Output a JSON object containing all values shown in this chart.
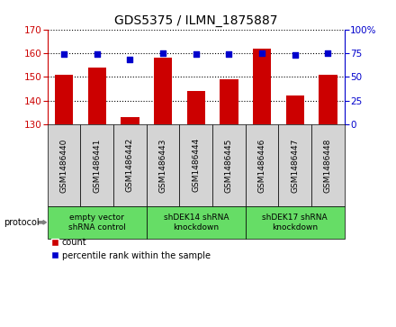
{
  "title": "GDS5375 / ILMN_1875887",
  "categories": [
    "GSM1486440",
    "GSM1486441",
    "GSM1486442",
    "GSM1486443",
    "GSM1486444",
    "GSM1486445",
    "GSM1486446",
    "GSM1486447",
    "GSM1486448"
  ],
  "bar_values": [
    151.0,
    154.0,
    133.0,
    158.0,
    144.0,
    149.0,
    162.0,
    142.0,
    151.0
  ],
  "percentile_values": [
    74,
    74,
    68,
    75,
    74,
    74,
    75,
    73,
    75
  ],
  "ylim_left": [
    130,
    170
  ],
  "ylim_right": [
    0,
    100
  ],
  "yticks_left": [
    130,
    140,
    150,
    160,
    170
  ],
  "yticks_right": [
    0,
    25,
    50,
    75,
    100
  ],
  "bar_color": "#cc0000",
  "dot_color": "#0000cc",
  "bar_width": 0.55,
  "protocols": [
    {
      "label": "empty vector\nshRNA control",
      "start": 0,
      "end": 3
    },
    {
      "label": "shDEK14 shRNA\nknockdown",
      "start": 3,
      "end": 6
    },
    {
      "label": "shDEK17 shRNA\nknockdown",
      "start": 6,
      "end": 9
    }
  ],
  "protocol_label": "protocol",
  "legend_count_label": "count",
  "legend_percentile_label": "percentile rank within the sample",
  "title_fontsize": 10,
  "tick_fontsize": 7.5,
  "cell_bg": "#d4d4d4",
  "proto_bg": "#66dd66"
}
